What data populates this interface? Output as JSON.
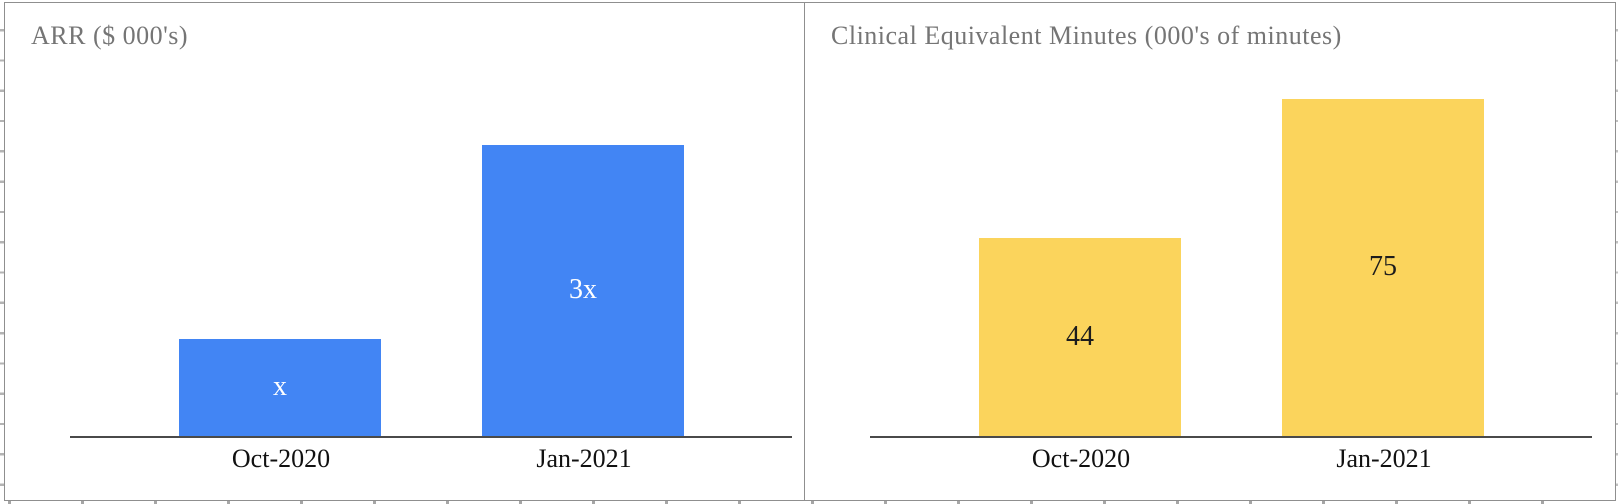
{
  "page": {
    "background": "#ffffff",
    "panel_border_color": "#8f8f8f",
    "axis_line_color": "#4a4a4a",
    "title_color": "#757575",
    "category_label_color": "#111111"
  },
  "chart_data": [
    {
      "type": "bar",
      "title": "ARR ($ 000's)",
      "categories": [
        "Oct-2020",
        "Jan-2021"
      ],
      "values": [
        1,
        3
      ],
      "value_labels": [
        "x",
        "3x"
      ],
      "bar_color": "#4285F4",
      "value_label_color": "#ffffff",
      "xlabel": "",
      "ylabel": "",
      "ylim": [
        0,
        3.75
      ],
      "grid": false,
      "legend": "none",
      "note_relative_values": "bars annotated as x and 3x (Jan-2021 is ~3 times Oct-2020)"
    },
    {
      "type": "bar",
      "title": "Clinical Equivalent Minutes (000's of minutes)",
      "categories": [
        "Oct-2020",
        "Jan-2021"
      ],
      "values": [
        44,
        75
      ],
      "value_labels": [
        "44",
        "75"
      ],
      "bar_color": "#FBD45C",
      "value_label_color": "#1c1c1c",
      "xlabel": "",
      "ylabel": "",
      "ylim": [
        0,
        81
      ],
      "grid": false,
      "legend": "none"
    }
  ]
}
